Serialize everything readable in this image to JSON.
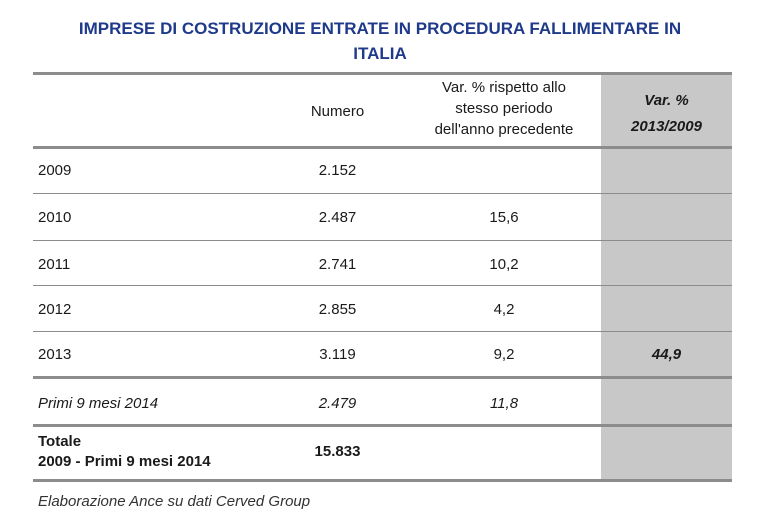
{
  "title_line1": "IMPRESE DI COSTRUZIONE ENTRATE IN PROCEDURA FALLIMENTARE IN",
  "title_line2": "ITALIA",
  "headers": {
    "numero": "Numero",
    "var_line1": "Var. % rispetto allo",
    "var_line2": "stesso periodo",
    "var_line3": "dell'anno precedente",
    "grey_line1": "Var. %",
    "grey_line2": "2013/2009"
  },
  "rows": [
    {
      "label": "2009",
      "numero": "2.152",
      "var": "",
      "grey": ""
    },
    {
      "label": "2010",
      "numero": "2.487",
      "var": "15,6",
      "grey": ""
    },
    {
      "label": "2011",
      "numero": "2.741",
      "var": "10,2",
      "grey": ""
    },
    {
      "label": "2012",
      "numero": "2.855",
      "var": "4,2",
      "grey": ""
    },
    {
      "label": "2013",
      "numero": "3.119",
      "var": "9,2",
      "grey": "44,9"
    },
    {
      "label": "Primi 9 mesi 2014",
      "numero": "2.479",
      "var": "11,8",
      "grey": ""
    }
  ],
  "total": {
    "label_line1": "Totale",
    "label_line2": "2009 - Primi 9 mesi 2014",
    "numero": "15.833"
  },
  "note": "Elaborazione Ance su dati Cerved Group"
}
